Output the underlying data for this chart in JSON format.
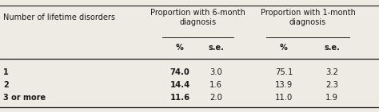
{
  "rows": [
    [
      "1",
      "74.0",
      "3.0",
      "75.1",
      "3.2"
    ],
    [
      "2",
      "14.4",
      "1.6",
      "13.9",
      "2.3"
    ],
    [
      "3 or more",
      "11.6",
      "2.0",
      "11.0",
      "1.9"
    ]
  ],
  "background_color": "#eeebe5",
  "text_color": "#1a1a1a",
  "figwidth": 4.74,
  "figheight": 1.41,
  "dpi": 100
}
